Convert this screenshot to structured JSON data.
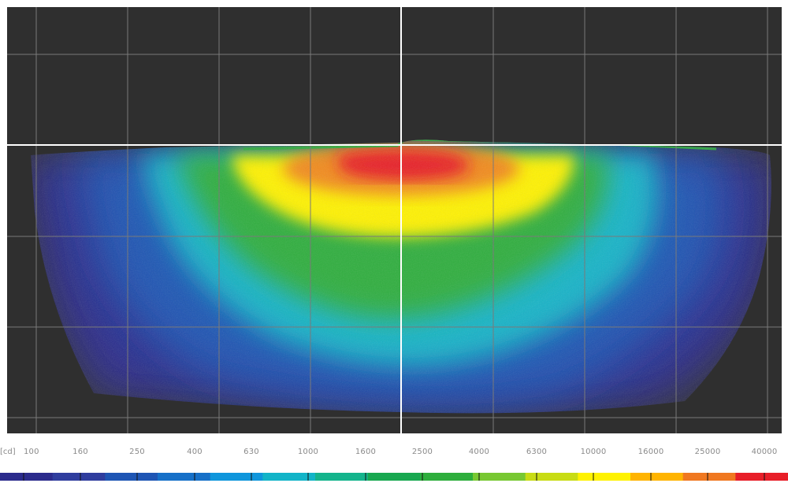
{
  "chart_data": {
    "type": "heatmap",
    "title": "",
    "unit": "[cd]",
    "scale_type": "log",
    "scale_ticks": [
      "100",
      "160",
      "250",
      "400",
      "630",
      "1000",
      "1600",
      "2500",
      "4000",
      "6300",
      "10000",
      "16000",
      "25000",
      "40000"
    ],
    "scale_colors": [
      "#2b2b8c",
      "#2f3d9e",
      "#1e55b4",
      "#1670c8",
      "#0f96dc",
      "#12b4c8",
      "#14b48c",
      "#18a850",
      "#2eae3c",
      "#78c832",
      "#c8dc14",
      "#fff200",
      "#ffb400",
      "#f07820",
      "#e81e28"
    ],
    "grid": true,
    "crosshair": true,
    "description_ignored": false,
    "peak_value_approx": "40000",
    "regions": [
      {
        "level": "40000",
        "color": "#e81e28"
      },
      {
        "level": "16000",
        "color": "#fff200"
      },
      {
        "level": "4000",
        "color": "#2eae3c"
      },
      {
        "level": "1000",
        "color": "#12b4c8"
      },
      {
        "level": "250",
        "color": "#1e55b4"
      },
      {
        "level": "100",
        "color": "#2b2b8c"
      }
    ]
  }
}
